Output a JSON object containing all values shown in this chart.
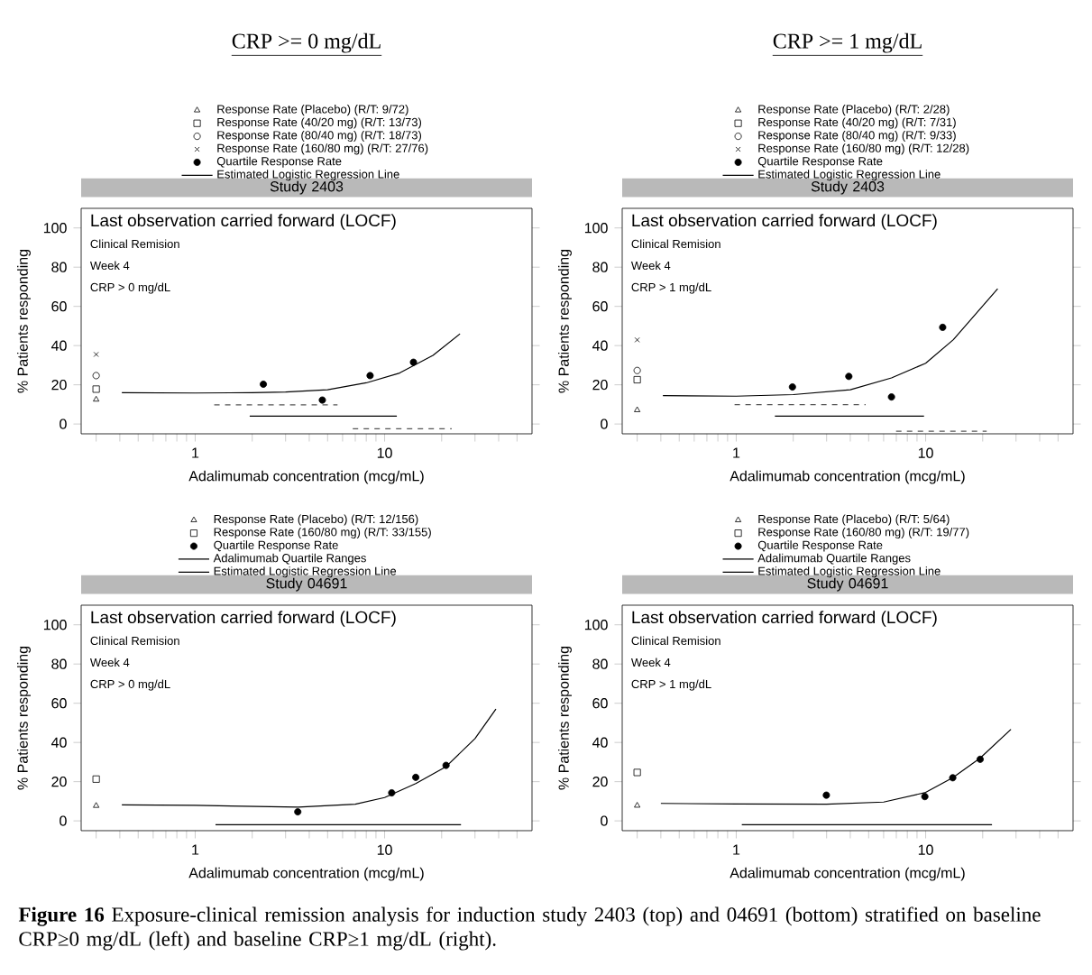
{
  "chart_data": [
    {
      "type": "scatter",
      "subtitle": "CRP >= 0 mg/dL",
      "title": "Study 2403",
      "xlabel": "Adalimumab concentration (mcg/mL)",
      "ylabel": "% Patients responding",
      "log": "x",
      "legend": "top",
      "xlim": [
        0.25,
        60
      ],
      "ylim": [
        -5,
        110
      ],
      "yticks": [
        0,
        20,
        40,
        60,
        80,
        100
      ],
      "xticks": [
        {
          "value": 0.3,
          "label": null
        },
        {
          "value": 0.4,
          "label": null
        },
        {
          "value": 0.5,
          "label": null
        },
        {
          "value": 0.6,
          "label": null
        },
        {
          "value": 0.7,
          "label": null
        },
        {
          "value": 0.8,
          "label": null
        },
        {
          "value": 0.9,
          "label": null
        },
        1,
        {
          "value": 2,
          "label": null
        },
        {
          "value": 3,
          "label": null
        },
        {
          "value": 4,
          "label": null
        },
        {
          "value": 5,
          "label": null
        },
        {
          "value": 6,
          "label": null
        },
        {
          "value": 7,
          "label": null
        },
        {
          "value": 8,
          "label": null
        },
        {
          "value": 9,
          "label": null
        },
        10,
        {
          "value": 20,
          "label": null
        },
        {
          "value": 30,
          "label": null
        },
        {
          "value": 40,
          "label": null
        },
        {
          "value": 50,
          "label": null
        }
      ],
      "annotations": [
        "Last observation carried forward (LOCF)",
        "Clinical Remision",
        "Week 4",
        "CRP > 0 mg/dL"
      ],
      "series": [
        {
          "name": "Response Rate (Placebo) (R/T: 9/72)",
          "marker": "triangle",
          "color": "#000000",
          "x": [
            0.3
          ],
          "values": [
            12.5
          ]
        },
        {
          "name": "Response Rate (40/20 mg) (R/T: 13/73)",
          "marker": "square",
          "color": "#000000",
          "x": [
            0.3
          ],
          "values": [
            17.8
          ]
        },
        {
          "name": "Response Rate (80/40 mg) (R/T: 18/73)",
          "marker": "circle",
          "color": "#000000",
          "x": [
            0.3
          ],
          "values": [
            24.7
          ]
        },
        {
          "name": "Response Rate (160/80 mg) (R/T: 27/76)",
          "marker": "cross",
          "color": "#000000",
          "x": [
            0.3
          ],
          "values": [
            35.5
          ]
        },
        {
          "name": "Quartile Response Rate",
          "marker": "dot",
          "color": "#000000",
          "x": [
            2.29,
            4.69,
            8.38,
            14.2
          ],
          "values": [
            20.3,
            12.2,
            24.7,
            31.5
          ]
        },
        {
          "name": "Estimated Logistic Regression Line",
          "type": "line",
          "marker": "none",
          "color": "#000000",
          "x": [
            0.41,
            1,
            2,
            3,
            5,
            8,
            12,
            18,
            25
          ],
          "values": [
            16,
            15.8,
            16,
            16.3,
            17.5,
            21,
            26,
            35,
            46
          ]
        },
        {
          "type": "line",
          "marker": "none",
          "line_style": "dashed",
          "color": "#555555",
          "x": [
            1.26,
            2.52,
            2.85,
            3.75,
            5.64
          ],
          "values": [
            9.8,
            9.8,
            9.8,
            9.8,
            9.8
          ]
        },
        {
          "type": "line",
          "marker": "none",
          "line_style": "solid",
          "color": "#000000",
          "x": [
            1.94,
            4.64,
            6.67,
            7.92,
            11.6
          ],
          "values": [
            4,
            4,
            4,
            4,
            4
          ]
        },
        {
          "type": "line",
          "marker": "none",
          "line_style": "dashed",
          "color": "#555555",
          "x": [
            6.79,
            10,
            12.2,
            15.1,
            22.6
          ],
          "values": [
            -2.4,
            -2.4,
            -2.4,
            -2.4,
            -2.4
          ]
        }
      ]
    },
    {
      "type": "scatter",
      "subtitle": "CRP >= 1 mg/dL",
      "title": "Study 2403",
      "xlabel": "Adalimumab concentration (mcg/mL)",
      "ylabel": "% Patients responding",
      "log": "x",
      "legend": "top",
      "xlim": [
        0.25,
        60
      ],
      "ylim": [
        -5,
        110
      ],
      "yticks": [
        0,
        20,
        40,
        60,
        80,
        100
      ],
      "xticks": [
        {
          "value": 0.3,
          "label": null
        },
        {
          "value": 0.4,
          "label": null
        },
        {
          "value": 0.5,
          "label": null
        },
        {
          "value": 0.6,
          "label": null
        },
        {
          "value": 0.7,
          "label": null
        },
        {
          "value": 0.8,
          "label": null
        },
        {
          "value": 0.9,
          "label": null
        },
        1,
        {
          "value": 2,
          "label": null
        },
        {
          "value": 3,
          "label": null
        },
        {
          "value": 4,
          "label": null
        },
        {
          "value": 5,
          "label": null
        },
        {
          "value": 6,
          "label": null
        },
        {
          "value": 7,
          "label": null
        },
        {
          "value": 8,
          "label": null
        },
        {
          "value": 9,
          "label": null
        },
        10,
        {
          "value": 20,
          "label": null
        },
        {
          "value": 30,
          "label": null
        },
        {
          "value": 40,
          "label": null
        },
        {
          "value": 50,
          "label": null
        }
      ],
      "annotations": [
        "Last observation carried forward (LOCF)",
        "Clinical Remision",
        "Week 4",
        "CRP > 1 mg/dL"
      ],
      "series": [
        {
          "name": "Response Rate (Placebo) (R/T: 2/28)",
          "marker": "triangle",
          "color": "#000000",
          "x": [
            0.3
          ],
          "values": [
            7.1
          ]
        },
        {
          "name": "Response Rate (40/20 mg) (R/T: 7/31)",
          "marker": "square",
          "color": "#000000",
          "x": [
            0.3
          ],
          "values": [
            22.6
          ]
        },
        {
          "name": "Response Rate (80/40 mg) (R/T: 9/33)",
          "marker": "circle",
          "color": "#000000",
          "x": [
            0.3
          ],
          "values": [
            27.3
          ]
        },
        {
          "name": "Response Rate (160/80 mg) (R/T: 12/28)",
          "marker": "cross",
          "color": "#000000",
          "x": [
            0.3
          ],
          "values": [
            42.9
          ]
        },
        {
          "name": "Quartile Response Rate",
          "marker": "dot",
          "color": "#000000",
          "x": [
            1.98,
            3.93,
            6.6,
            12.3
          ],
          "values": [
            18.9,
            24.3,
            13.8,
            49.3
          ]
        },
        {
          "name": "Estimated Logistic Regression Line",
          "type": "line",
          "marker": "none",
          "color": "#000000",
          "x": [
            0.41,
            1,
            2,
            4,
            6.6,
            10,
            14,
            24
          ],
          "values": [
            14.5,
            14.2,
            15,
            17.5,
            23.5,
            31,
            43,
            69
          ]
        },
        {
          "type": "line",
          "marker": "none",
          "line_style": "dashed",
          "color": "#555555",
          "x": [
            0.98,
            2.52,
            2.87,
            3.47,
            4.82
          ],
          "values": [
            9.9,
            9.9,
            9.9,
            9.9,
            9.9
          ]
        },
        {
          "type": "line",
          "marker": "none",
          "line_style": "solid",
          "color": "#000000",
          "x": [
            1.6,
            4.13,
            6.43,
            7.61,
            9.8
          ],
          "values": [
            4,
            4,
            4,
            4,
            4
          ]
        },
        {
          "type": "line",
          "marker": "none",
          "line_style": "dashed",
          "color": "#555555",
          "x": [
            6.98,
            8.08,
            9.9,
            12.7,
            21
          ],
          "values": [
            -3.7,
            -3.7,
            -3.7,
            -3.7,
            -3.7
          ]
        }
      ]
    },
    {
      "type": "scatter",
      "title": "Study 04691",
      "xlabel": "Adalimumab concentration (mcg/mL)",
      "ylabel": "% Patients responding",
      "log": "x",
      "legend": "top",
      "xlim": [
        0.25,
        60
      ],
      "ylim": [
        -5,
        110
      ],
      "yticks": [
        0,
        20,
        40,
        60,
        80,
        100
      ],
      "xticks": [
        {
          "value": 0.3,
          "label": null
        },
        {
          "value": 0.4,
          "label": null
        },
        {
          "value": 0.5,
          "label": null
        },
        {
          "value": 0.6,
          "label": null
        },
        {
          "value": 0.7,
          "label": null
        },
        {
          "value": 0.8,
          "label": null
        },
        {
          "value": 0.9,
          "label": null
        },
        1,
        {
          "value": 2,
          "label": null
        },
        {
          "value": 3,
          "label": null
        },
        {
          "value": 4,
          "label": null
        },
        {
          "value": 5,
          "label": null
        },
        {
          "value": 6,
          "label": null
        },
        {
          "value": 7,
          "label": null
        },
        {
          "value": 8,
          "label": null
        },
        {
          "value": 9,
          "label": null
        },
        10,
        {
          "value": 20,
          "label": null
        },
        {
          "value": 30,
          "label": null
        },
        {
          "value": 40,
          "label": null
        },
        {
          "value": 50,
          "label": null
        }
      ],
      "annotations": [
        "Last observation carried forward (LOCF)",
        "Clinical Remision",
        "Week 4",
        "CRP > 0 mg/dL"
      ],
      "series": [
        {
          "name": "Response Rate (Placebo) (R/T: 12/156)",
          "marker": "triangle",
          "color": "#000000",
          "x": [
            0.3
          ],
          "values": [
            7.7
          ]
        },
        {
          "name": "Response Rate (160/80 mg) (R/T: 33/155)",
          "marker": "square",
          "color": "#000000",
          "x": [
            0.3
          ],
          "values": [
            21.3
          ]
        },
        {
          "name": "Quartile Response Rate",
          "marker": "dot",
          "color": "#000000",
          "x": [
            3.48,
            10.9,
            14.6,
            21.1
          ],
          "values": [
            4.6,
            14.3,
            22.2,
            28.3
          ]
        },
        {
          "name": "Adalimumab Quartile Ranges",
          "type": "line",
          "marker": "none",
          "line_style": "solid",
          "color": "#000000",
          "x": [
            1.28,
            9.35,
            12.4,
            16.6,
            25.3
          ],
          "values": [
            -2,
            -2,
            -2,
            -2,
            -2
          ]
        },
        {
          "name": "Estimated Logistic Regression Line",
          "type": "line",
          "marker": "none",
          "color": "#000000",
          "x": [
            0.41,
            1,
            3.5,
            7,
            10,
            14.6,
            21,
            30,
            38.7
          ],
          "values": [
            8.2,
            7.9,
            7,
            8.5,
            11.9,
            19,
            27.5,
            42,
            57
          ]
        }
      ]
    },
    {
      "type": "scatter",
      "title": "Study 04691",
      "xlabel": "Adalimumab concentration (mcg/mL)",
      "ylabel": "% Patients responding",
      "log": "x",
      "legend": "top",
      "xlim": [
        0.25,
        60
      ],
      "ylim": [
        -5,
        110
      ],
      "yticks": [
        0,
        20,
        40,
        60,
        80,
        100
      ],
      "xticks": [
        {
          "value": 0.3,
          "label": null
        },
        {
          "value": 0.4,
          "label": null
        },
        {
          "value": 0.5,
          "label": null
        },
        {
          "value": 0.6,
          "label": null
        },
        {
          "value": 0.7,
          "label": null
        },
        {
          "value": 0.8,
          "label": null
        },
        {
          "value": 0.9,
          "label": null
        },
        1,
        {
          "value": 2,
          "label": null
        },
        {
          "value": 3,
          "label": null
        },
        {
          "value": 4,
          "label": null
        },
        {
          "value": 5,
          "label": null
        },
        {
          "value": 6,
          "label": null
        },
        {
          "value": 7,
          "label": null
        },
        {
          "value": 8,
          "label": null
        },
        {
          "value": 9,
          "label": null
        },
        10,
        {
          "value": 20,
          "label": null
        },
        {
          "value": 30,
          "label": null
        },
        {
          "value": 40,
          "label": null
        },
        {
          "value": 50,
          "label": null
        }
      ],
      "annotations": [
        "Last observation carried forward (LOCF)",
        "Clinical Remision",
        "Week 4",
        "CRP > 1 mg/dL",
        "**Figure 16** Exposure-clinical remission analysis for induction study 2403 (top) and 04691 (bottom) stratified on baseline CRP≥0 mg/dL (left) and baseline CRP≥1 mg/dL (right)."
      ],
      "series": [
        {
          "name": "Response Rate (Placebo) (R/T: 5/64)",
          "marker": "triangle",
          "color": "#000000",
          "x": [
            0.3
          ],
          "values": [
            7.8
          ]
        },
        {
          "name": "Response Rate (160/80 mg) (R/T: 19/77)",
          "marker": "square",
          "color": "#000000",
          "x": [
            0.3
          ],
          "values": [
            24.7
          ]
        },
        {
          "name": "Quartile Response Rate",
          "marker": "dot",
          "color": "#000000",
          "x": [
            2.99,
            9.9,
            13.9,
            19.4
          ],
          "values": [
            13.1,
            12.4,
            22,
            31.4
          ]
        },
        {
          "name": "Adalimumab Quartile Ranges",
          "type": "line",
          "marker": "none",
          "line_style": "solid",
          "color": "#000000",
          "x": [
            1.07,
            8.15,
            11.7,
            15.8,
            22.4
          ],
          "values": [
            -2,
            -2,
            -2,
            -2,
            -2
          ]
        },
        {
          "name": "Estimated Logistic Regression Line",
          "type": "line",
          "marker": "none",
          "color": "#000000",
          "x": [
            0.4,
            1,
            3,
            6,
            10,
            13.9,
            19.4,
            28.2
          ],
          "values": [
            8.9,
            8.6,
            8.5,
            9.6,
            14.5,
            22,
            32,
            46.7
          ]
        }
      ]
    }
  ]
}
